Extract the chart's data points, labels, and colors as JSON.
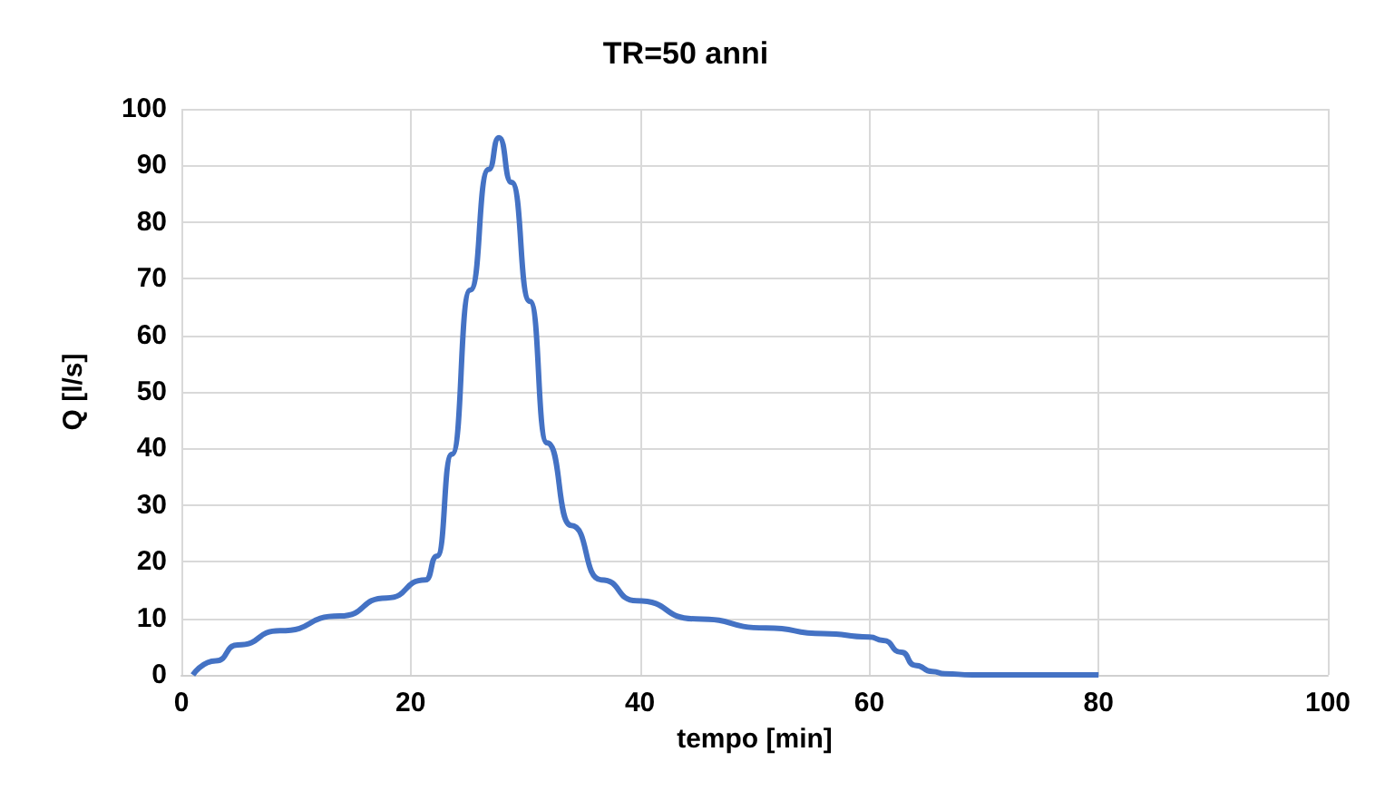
{
  "chart_data": {
    "type": "line",
    "title": "TR=50 anni",
    "xlabel": "tempo [min]",
    "ylabel": "Q [l/s]",
    "xlim": [
      0,
      100
    ],
    "xticks": [
      0,
      20,
      40,
      60,
      80,
      100
    ],
    "ylim": [
      0,
      100
    ],
    "yticks": [
      0,
      10,
      20,
      30,
      40,
      50,
      60,
      70,
      80,
      90,
      100
    ],
    "grid": true,
    "marker": "none",
    "line_style": "solid",
    "series": [
      {
        "color": "#4472c4",
        "x": [
          1,
          3,
          4.9,
          8.6,
          13.8,
          17.9,
          21.3,
          22.3,
          23.6,
          25.2,
          26.8,
          27.7,
          28.8,
          30.4,
          31.9,
          34,
          36.6,
          39.7,
          44.9,
          51,
          56,
          60,
          61.2,
          62.8,
          64,
          65.5,
          66.6,
          69,
          75,
          80
        ],
        "values": [
          0,
          2.5,
          5.3,
          7.8,
          10.4,
          13.6,
          16.8,
          21,
          39,
          68,
          89.3,
          94.9,
          87,
          66,
          41,
          26.4,
          16.8,
          13.1,
          9.9,
          8.3,
          7.3,
          6.7,
          6.1,
          4,
          1.7,
          0.6,
          0.2,
          0,
          0,
          0
        ]
      }
    ]
  }
}
